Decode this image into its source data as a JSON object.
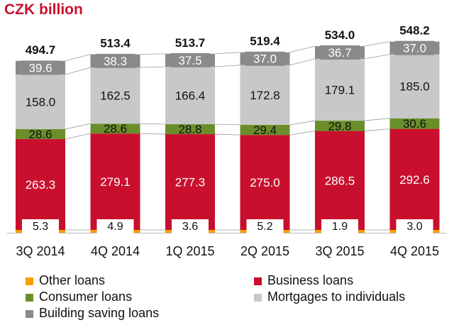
{
  "chart_data": {
    "type": "bar",
    "stacked": true,
    "title": "CZK billion",
    "categories": [
      "3Q 2014",
      "4Q 2014",
      "1Q 2015",
      "2Q 2015",
      "3Q 2015",
      "4Q 2015"
    ],
    "totals": [
      494.7,
      513.4,
      513.7,
      519.4,
      534.0,
      548.2
    ],
    "totals_text": [
      "494.7",
      "513.4",
      "513.7",
      "519.4",
      "534.0",
      "548.2"
    ],
    "series": [
      {
        "name": "Other loans",
        "color": "#f5a000",
        "values": [
          5.3,
          4.9,
          3.6,
          5.2,
          1.9,
          3.0
        ],
        "labels": [
          "5.3",
          "4.9",
          "3.6",
          "5.2",
          "1.9",
          "3.0"
        ]
      },
      {
        "name": "Business loans",
        "color": "#c8102e",
        "values": [
          263.3,
          279.1,
          277.3,
          275.0,
          286.5,
          292.6
        ],
        "labels": [
          "263.3",
          "279.1",
          "277.3",
          "275.0",
          "286.5",
          "292.6"
        ]
      },
      {
        "name": "Consumer loans",
        "color": "#6a8f2a",
        "values": [
          28.6,
          28.6,
          28.8,
          29.4,
          29.8,
          30.6
        ],
        "labels": [
          "28.6",
          "28.6",
          "28.8",
          "29.4",
          "29.8",
          "30.6"
        ]
      },
      {
        "name": "Mortgages to individuals",
        "color": "#c8c8c8",
        "values": [
          158.0,
          162.5,
          166.4,
          172.8,
          179.1,
          185.0
        ],
        "labels": [
          "158.0",
          "162.5",
          "166.4",
          "172.8",
          "179.1",
          "185.0"
        ]
      },
      {
        "name": "Building saving loans",
        "color": "#8a8a8a",
        "values": [
          39.6,
          38.3,
          37.5,
          37.0,
          36.7,
          37.0
        ],
        "labels": [
          "39.6",
          "38.3",
          "37.5",
          "37.0",
          "36.7",
          "37.0"
        ]
      }
    ],
    "legend_position": "bottom",
    "grid": false
  },
  "legend": {
    "items": [
      {
        "label": "Other loans",
        "color": "#f5a000"
      },
      {
        "label": "Business loans",
        "color": "#c8102e"
      },
      {
        "label": "Consumer loans",
        "color": "#6a8f2a"
      },
      {
        "label": "Mortgages to individuals",
        "color": "#c8c8c8"
      },
      {
        "label": "Building saving loans",
        "color": "#8a8a8a"
      }
    ]
  }
}
